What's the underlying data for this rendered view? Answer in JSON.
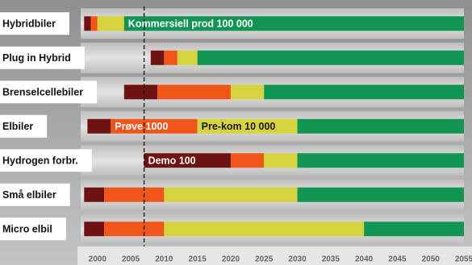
{
  "chart_data": {
    "type": "timeline",
    "xlim": [
      1997,
      2055
    ],
    "xticks": [
      2000,
      2005,
      2010,
      2015,
      2020,
      2025,
      2030,
      2035,
      2040,
      2045,
      2050,
      2055
    ],
    "marker_year": 2007,
    "phase_colors": [
      "#6e1212",
      "#f0561a",
      "#d6d43e",
      "#129553"
    ],
    "rows": [
      {
        "label": "Hybridbiler",
        "segments": [
          {
            "start": 1998,
            "end": 1999
          },
          {
            "start": 1999,
            "end": 2000
          },
          {
            "start": 2000,
            "end": 2004
          },
          {
            "start": 2004,
            "end": 2055,
            "label": "Kommersiell prod 100 000"
          }
        ]
      },
      {
        "label": "Plug in Hybrid",
        "segments": [
          {
            "start": 2008,
            "end": 2010
          },
          {
            "start": 2010,
            "end": 2012
          },
          {
            "start": 2012,
            "end": 2015
          },
          {
            "start": 2015,
            "end": 2055
          }
        ]
      },
      {
        "label": "Brenselcellebiler",
        "segments": [
          {
            "start": 2004,
            "end": 2009
          },
          {
            "start": 2009,
            "end": 2020
          },
          {
            "start": 2020,
            "end": 2025
          },
          {
            "start": 2025,
            "end": 2055
          }
        ]
      },
      {
        "label": "Elbiler",
        "segments": [
          {
            "start": 1998.5,
            "end": 2002
          },
          {
            "start": 2002,
            "end": 2015,
            "label": "Prøve 1000"
          },
          {
            "start": 2015,
            "end": 2030,
            "label": "Pre-kom  10 000"
          },
          {
            "start": 2030,
            "end": 2055
          }
        ]
      },
      {
        "label": "Hydrogen forbr.",
        "segments": [
          {
            "start": 2007,
            "end": 2020,
            "label": "Demo 100"
          },
          {
            "start": 2020,
            "end": 2025
          },
          {
            "start": 2025,
            "end": 2030
          },
          {
            "start": 2030,
            "end": 2055
          }
        ]
      },
      {
        "label": "Små elbiler",
        "segments": [
          {
            "start": 1998,
            "end": 2001
          },
          {
            "start": 2001,
            "end": 2010
          },
          {
            "start": 2010,
            "end": 2030
          },
          {
            "start": 2030,
            "end": 2055
          }
        ]
      },
      {
        "label": "Micro elbil",
        "segments": [
          {
            "start": 1998,
            "end": 2001
          },
          {
            "start": 2001,
            "end": 2010
          },
          {
            "start": 2010,
            "end": 2040
          },
          {
            "start": 2040,
            "end": 2055
          }
        ]
      }
    ]
  }
}
